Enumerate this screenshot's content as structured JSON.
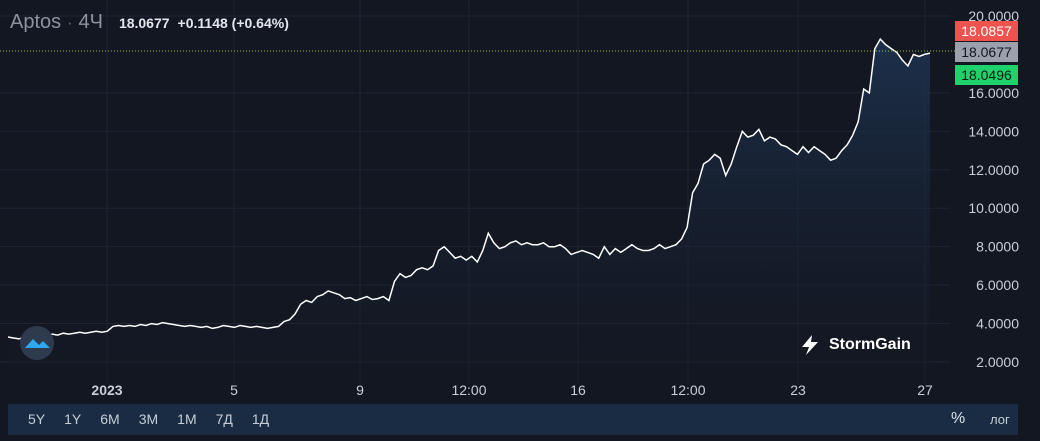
{
  "header": {
    "symbol": "Aptos",
    "separator": "·",
    "timeframe": "4Ч",
    "price": "18.0677",
    "change": "+0.1148 (+0.64%)"
  },
  "tags": {
    "ask": "18.0857",
    "last": "18.0677",
    "bid": "18.0496"
  },
  "branding": {
    "name": "StormGain"
  },
  "bottom_bar": {
    "ranges": [
      "5Y",
      "1Y",
      "6M",
      "3M",
      "1M",
      "7Д",
      "1Д"
    ],
    "percent_label": "%",
    "log_label": "лог"
  },
  "colors": {
    "background": "#131722",
    "line": "#ffffff",
    "grid": "#1e2433",
    "ask": "#ef5350",
    "bid": "#1fd26b",
    "last": "#9aa0ac"
  },
  "chart_data": {
    "type": "area",
    "title": "",
    "ylim": [
      2,
      20
    ],
    "y_ticks": [
      "2.0000",
      "4.0000",
      "6.0000",
      "8.0000",
      "10.0000",
      "12.0000",
      "14.0000",
      "16.0000",
      "20.0000"
    ],
    "x_ticks": [
      "2023",
      "5",
      "9",
      "12:00",
      "16",
      "12:00",
      "23",
      "27"
    ],
    "grid": true,
    "series": [
      {
        "values": [
          3.3,
          3.25,
          3.2,
          3.3,
          3.25,
          3.35,
          3.4,
          3.35,
          3.45,
          3.4,
          3.5,
          3.45,
          3.5,
          3.55,
          3.5,
          3.55,
          3.6,
          3.55,
          3.6,
          3.85,
          3.9,
          3.85,
          3.9,
          3.85,
          3.95,
          3.9,
          4.0,
          3.95,
          4.05,
          4.0,
          3.95,
          3.9,
          3.85,
          3.9,
          3.85,
          3.8,
          3.85,
          3.75,
          3.8,
          3.9,
          3.85,
          3.8,
          3.9,
          3.85,
          3.8,
          3.85,
          3.8,
          3.75,
          3.8,
          3.85,
          4.1,
          4.2,
          4.5,
          5.0,
          5.2,
          5.1,
          5.4,
          5.5,
          5.7,
          5.6,
          5.5,
          5.3,
          5.35,
          5.2,
          5.3,
          5.4,
          5.25,
          5.3,
          5.4,
          5.2,
          6.2,
          6.6,
          6.4,
          6.5,
          6.8,
          6.9,
          6.8,
          7.0,
          7.8,
          8.0,
          7.7,
          7.4,
          7.5,
          7.3,
          7.5,
          7.2,
          7.8,
          8.7,
          8.2,
          7.9,
          8.0,
          8.2,
          8.3,
          8.1,
          8.2,
          8.1,
          8.1,
          8.2,
          8.0,
          8.0,
          8.1,
          7.9,
          7.6,
          7.7,
          7.8,
          7.7,
          7.6,
          7.4,
          8.0,
          7.6,
          7.9,
          7.7,
          7.9,
          8.1,
          7.9,
          7.8,
          7.8,
          7.9,
          8.1,
          7.9,
          8.0,
          8.1,
          8.4,
          9.0,
          10.8,
          11.3,
          12.3,
          12.5,
          12.8,
          12.6,
          11.7,
          12.3,
          13.2,
          14.0,
          13.7,
          13.8,
          14.1,
          13.5,
          13.7,
          13.6,
          13.3,
          13.2,
          13.0,
          12.8,
          13.2,
          12.9,
          13.2,
          13.0,
          12.8,
          12.5,
          12.6,
          13.0,
          13.3,
          13.8,
          14.5,
          16.2,
          16.0,
          18.3,
          18.8,
          18.5,
          18.3,
          18.1,
          17.7,
          17.4,
          18.0,
          17.9,
          18.0,
          18.07
        ]
      }
    ]
  }
}
